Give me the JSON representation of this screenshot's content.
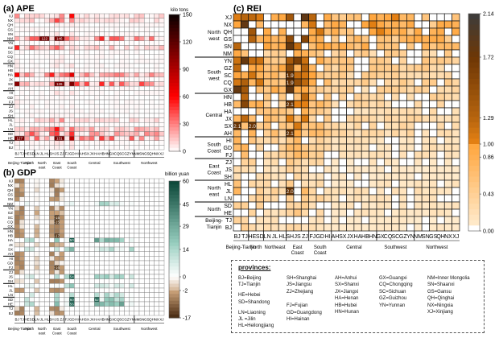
{
  "chart_data": [
    {
      "type": "heatmap",
      "title": "(a) APE",
      "colorbar_label": "kilo tons",
      "colorbar_ticks": [
        0,
        30,
        60,
        90,
        120,
        150
      ],
      "vlim": [
        0,
        150
      ],
      "rows": [
        "XJ",
        "NX",
        "QH",
        "GS",
        "SN",
        "NM",
        "YN",
        "GZ",
        "SC",
        "CQ",
        "GX",
        "HN",
        "HB",
        "HA",
        "JX",
        "SX",
        "AH",
        "HI",
        "GD",
        "FJ",
        "ZJ",
        "JS",
        "SH",
        "HL",
        "JL",
        "LN",
        "SD",
        "HE",
        "TJ",
        "BJ"
      ],
      "columns": [
        "BJ",
        "TJ",
        "HE",
        "SD",
        "LN",
        "JL",
        "HL",
        "SH",
        "JS",
        "ZJ",
        "FJ",
        "GD",
        "HI",
        "AH",
        "SX",
        "JX",
        "HA",
        "HB",
        "HN",
        "GX",
        "CQ",
        "SC",
        "GZ",
        "YN",
        "NM",
        "SN",
        "GS",
        "QH",
        "NX",
        "XJ"
      ],
      "column_groups": [
        "Beijing-Tianjin",
        "North",
        "North east",
        "East Coast",
        "South Coast",
        "Central",
        "Southwest",
        "Northwest"
      ],
      "cell_labels": [
        {
          "row": "NM",
          "col": "JL",
          "text": "122"
        },
        {
          "row": "NM",
          "col": "JS",
          "text": "146"
        },
        {
          "row": "SX",
          "col": "JS",
          "text": "126"
        },
        {
          "row": "HE",
          "col": "BJ",
          "text": "127"
        },
        {
          "row": "HE",
          "col": "JS",
          "text": "131"
        }
      ]
    },
    {
      "type": "heatmap",
      "title": "(b) GDP",
      "colorbar_label": "billion yuan",
      "colorbar_ticks": [
        -17,
        -2,
        0,
        14,
        29,
        45,
        60
      ],
      "vlim": [
        -17,
        60
      ],
      "rows": [
        "XJ",
        "NX",
        "QH",
        "GS",
        "SN",
        "NM",
        "YN",
        "GZ",
        "SC",
        "CQ",
        "GX",
        "HN",
        "HB",
        "HA",
        "JX",
        "SX",
        "AH",
        "HI",
        "GD",
        "FJ",
        "ZJ",
        "JS",
        "SH",
        "HL",
        "JL",
        "LN",
        "SD",
        "HE",
        "TJ",
        "BJ"
      ],
      "columns": [
        "BJ",
        "TJ",
        "HE",
        "SD",
        "LN",
        "JL",
        "HL",
        "SH",
        "JS",
        "ZJ",
        "FJ",
        "GD",
        "HI",
        "AH",
        "SX",
        "JX",
        "HA",
        "HB",
        "HN",
        "GX",
        "CQ",
        "SC",
        "GZ",
        "YN",
        "NM",
        "SN",
        "GS",
        "QH",
        "NX",
        "XJ"
      ],
      "column_groups": [
        "Beijing-Tianjin",
        "North",
        "North east",
        "East Coast",
        "South Coast",
        "Central",
        "Southwest",
        "Northwest"
      ],
      "cell_labels": [
        {
          "row": "SC",
          "col": "JS",
          "text": "-15"
        },
        {
          "row": "CQ",
          "col": "JS",
          "text": "-15"
        },
        {
          "row": "HB",
          "col": "JS",
          "text": "-17"
        },
        {
          "row": "HA",
          "col": "GD",
          "text": "50"
        },
        {
          "row": "FJ",
          "col": "JS",
          "text": "-16"
        },
        {
          "row": "JS",
          "col": "GD",
          "text": "54"
        },
        {
          "row": "SD",
          "col": "GD",
          "text": "60"
        },
        {
          "row": "SD",
          "col": "HA",
          "text": "52"
        },
        {
          "row": "HE",
          "col": "GD",
          "text": "56"
        }
      ]
    },
    {
      "type": "heatmap",
      "title": "(c) REI",
      "colorbar_ticks": [
        0.0,
        0.43,
        0.86,
        1.0,
        1.29,
        1.72,
        2.14
      ],
      "vlim": [
        0,
        2.14
      ],
      "rows": [
        "XJ",
        "NX",
        "QH",
        "GS",
        "SN",
        "NM",
        "YN",
        "GZ",
        "SC",
        "CQ",
        "GX",
        "HN",
        "HB",
        "HA",
        "JX",
        "SX",
        "AH",
        "HI",
        "GD",
        "FJ",
        "ZJ",
        "JS",
        "SH",
        "HL",
        "JL",
        "LN",
        "SD",
        "HE",
        "TJ",
        "BJ"
      ],
      "columns": [
        "BJ",
        "TJ",
        "HE",
        "SD",
        "LN",
        "JL",
        "HL",
        "SH",
        "JS",
        "ZJ",
        "FJ",
        "GD",
        "HI",
        "AH",
        "SX",
        "JX",
        "HA",
        "HB",
        "HN",
        "GX",
        "CQ",
        "SC",
        "GZ",
        "YN",
        "NM",
        "SN",
        "GS",
        "QH",
        "NX",
        "XJ"
      ],
      "row_groups": [
        {
          "label": "North west",
          "rows": [
            "XJ",
            "NX",
            "QH",
            "GS",
            "SN",
            "NM"
          ]
        },
        {
          "label": "South west",
          "rows": [
            "YN",
            "GZ",
            "SC",
            "CQ",
            "GX"
          ]
        },
        {
          "label": "Central",
          "rows": [
            "HN",
            "HB",
            "HA",
            "JX",
            "SX",
            "AH"
          ]
        },
        {
          "label": "South Coast",
          "rows": [
            "HI",
            "GD",
            "FJ"
          ]
        },
        {
          "label": "East Coast",
          "rows": [
            "ZJ",
            "JS",
            "SH"
          ]
        },
        {
          "label": "North east",
          "rows": [
            "HL",
            "JL",
            "LN"
          ]
        },
        {
          "label": "North",
          "rows": [
            "SD",
            "HE"
          ]
        },
        {
          "label": "Beijing-Tianjin",
          "rows": [
            "TJ",
            "BJ"
          ]
        }
      ],
      "column_groups": [
        "Beijing-Tianjin",
        "North",
        "Northeast",
        "East Coast",
        "South Coast",
        "Central",
        "Southwest",
        "Northwest"
      ],
      "cell_labels": [
        {
          "row": "SC",
          "col": "SH",
          "text": "1.9"
        },
        {
          "row": "CQ",
          "col": "SH",
          "text": "1.9"
        },
        {
          "row": "HB",
          "col": "SH",
          "text": "2.1"
        },
        {
          "row": "SX",
          "col": "BJ",
          "text": "2.1"
        },
        {
          "row": "SX",
          "col": "HE",
          "text": "2.0"
        },
        {
          "row": "AH",
          "col": "SH",
          "text": "2.1"
        },
        {
          "row": "JL",
          "col": "SH",
          "text": "2.0"
        }
      ]
    }
  ],
  "legend": {
    "title": "provinces:",
    "columns": [
      [
        "BJ=Beijing",
        "TJ=Tianjin",
        "",
        "HE=Hebei",
        "SD=Shandong",
        "",
        "LN=Liaoning",
        "JL =Jilin",
        "HL=Heilongjiang"
      ],
      [
        "SH=Shanghai",
        "JS=Jiangsu",
        "ZJ=Zhejiang",
        "",
        "",
        "FJ=Fujian",
        "GD=Guangdong",
        "HI=Hainan"
      ],
      [
        "AH=Anhui",
        "SX=Shanxi",
        "JX=Jiangxi",
        "HA=Henan",
        "HB=Hubei",
        "HN=Hunan"
      ],
      [
        "GX=Guangxi",
        "CQ=Chongqing",
        "SC=Sichuan",
        "GZ=Guizhou",
        "YN=Yunnan"
      ],
      [
        "NM=Inner Mongolia",
        "SN=Shaanxi",
        "GS=Gansu",
        "QH=Qinghai",
        "NX=Ningxia",
        "XJ=Xinjiang"
      ]
    ]
  }
}
